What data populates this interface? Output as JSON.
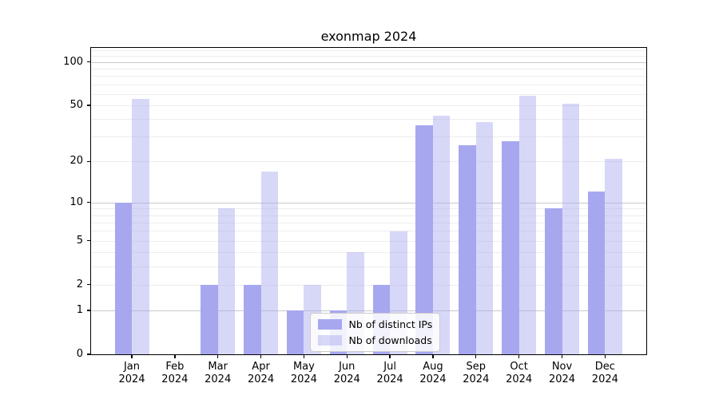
{
  "title": "exonmap 2024",
  "chart_data": {
    "type": "bar",
    "title": "exonmap 2024",
    "x_months": [
      "Jan",
      "Feb",
      "Mar",
      "Apr",
      "May",
      "Jun",
      "Jul",
      "Aug",
      "Sep",
      "Oct",
      "Nov",
      "Dec"
    ],
    "x_year": "2024",
    "series": [
      {
        "name": "Nb of distinct IPs",
        "values": [
          10,
          0,
          2,
          2,
          1,
          1,
          2,
          36,
          26,
          28,
          9,
          12
        ],
        "color": "rgba(167,167,240,1)"
      },
      {
        "name": "Nb of downloads",
        "values": [
          55,
          0,
          9,
          17,
          2,
          4,
          6,
          42,
          38,
          58,
          51,
          21
        ],
        "color": "rgba(167,167,240,0.45)"
      }
    ],
    "y_scale": "symlog",
    "y_ticks": [
      0,
      1,
      2,
      5,
      10,
      20,
      50,
      100
    ],
    "y_major_gridlines": [
      1,
      10,
      100
    ],
    "y_minor_gridlines": [
      2,
      3,
      4,
      5,
      6,
      7,
      8,
      9,
      20,
      30,
      40,
      50,
      60,
      70,
      80,
      90,
      110,
      120
    ],
    "ylim": [
      0,
      125
    ],
    "grid": true,
    "legend_position": "lower center"
  },
  "colors": {
    "bar_distinct_ips": "rgba(167,167,240,1)",
    "bar_downloads": "rgba(167,167,240,0.45)",
    "major_gridline": "#c8c8c8",
    "minor_gridline": "#ededed",
    "axis": "#000000",
    "background": "#ffffff",
    "legend_border": "#cccccc"
  }
}
